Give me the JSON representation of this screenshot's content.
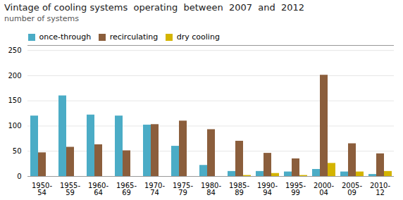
{
  "chart_data": {
    "type": "bar",
    "title": "Vintage of cooling systems  operating  between  2007  and  2012",
    "subtitle": "number of systems",
    "categories": [
      "1950-\n54",
      "1955-\n59",
      "1960-\n64",
      "1965-\n69",
      "1970-\n74",
      "1975-\n79",
      "1980-\n84",
      "1985-\n89",
      "1990-\n94",
      "1995-\n99",
      "2000-\n04",
      "2005-\n09",
      "2010-\n12"
    ],
    "series": [
      {
        "name": "once-through",
        "color": "#4bacc6",
        "values": [
          120,
          160,
          122,
          120,
          102,
          60,
          22,
          10,
          10,
          9,
          14,
          9,
          4
        ]
      },
      {
        "name": "recirculating",
        "color": "#8B5E3C",
        "values": [
          47,
          58,
          63,
          51,
          103,
          110,
          93,
          70,
          46,
          35,
          201,
          65,
          45
        ]
      },
      {
        "name": "dry cooling",
        "color": "#d4b400",
        "values": [
          0,
          0,
          0,
          0,
          0,
          0,
          0,
          2,
          6,
          2,
          26,
          9,
          10
        ]
      }
    ],
    "ylim": [
      0,
      260
    ],
    "yticks": [
      0,
      50,
      100,
      150,
      200,
      250
    ],
    "grid": true,
    "legend": "top"
  }
}
